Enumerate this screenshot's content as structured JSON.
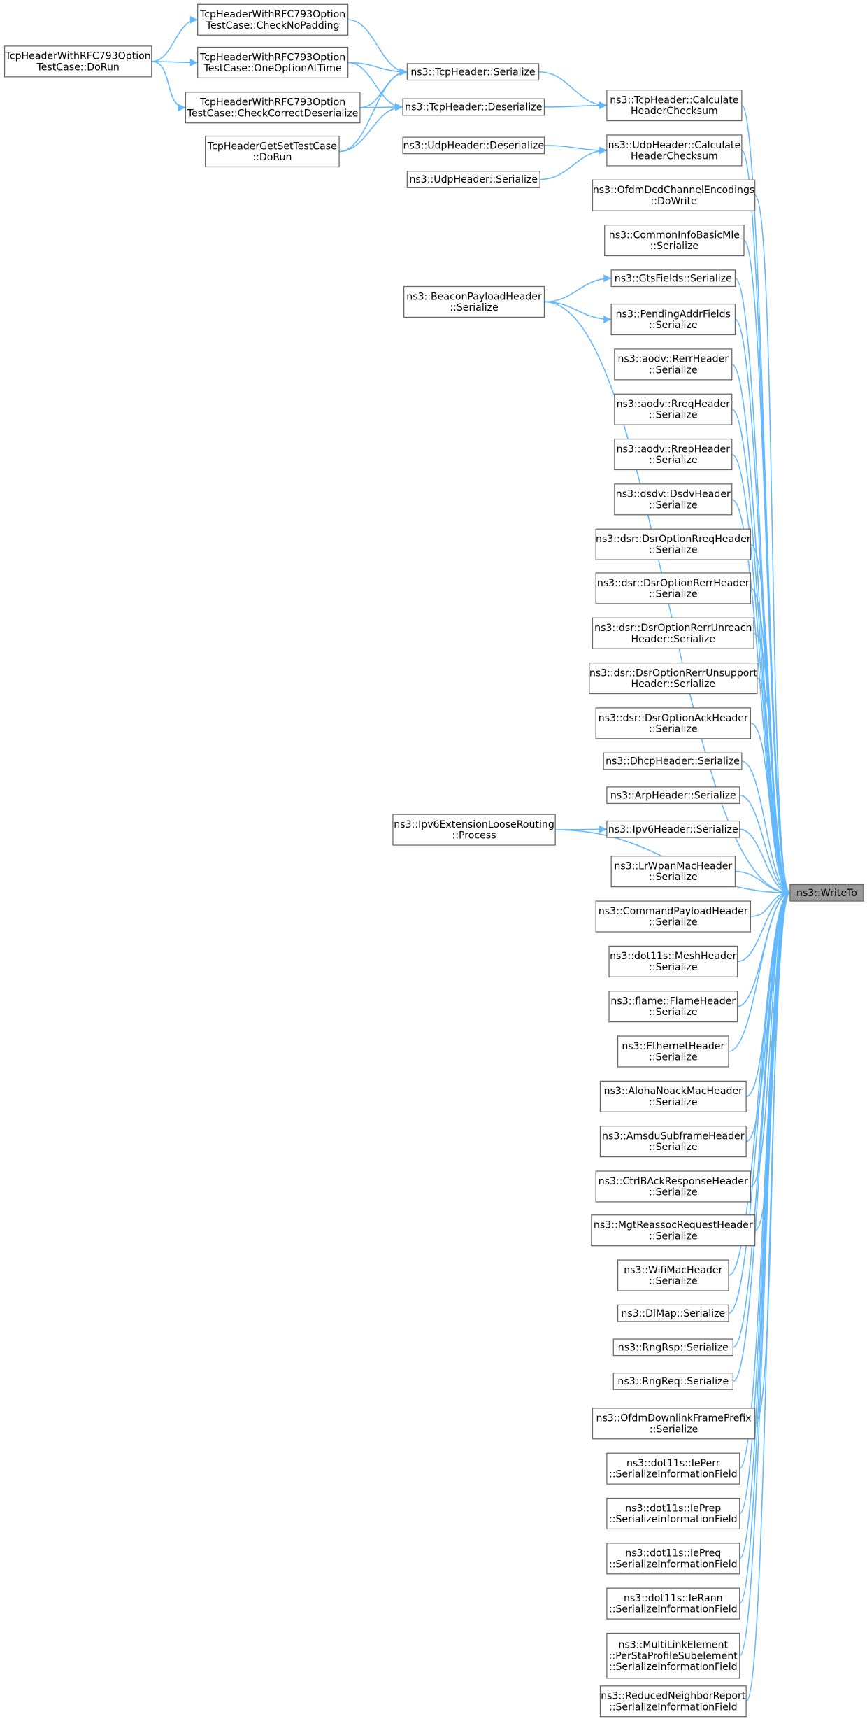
{
  "nodes": [
    {
      "lines": [
        "TcpHeaderWithRFC793Option",
        "TestCase::DoRun"
      ]
    },
    {
      "lines": [
        "TcpHeaderWithRFC793Option",
        "TestCase::CheckNoPadding"
      ]
    },
    {
      "lines": [
        "TcpHeaderWithRFC793Option",
        "TestCase::OneOptionAtTime"
      ]
    },
    {
      "lines": [
        "TcpHeaderWithRFC793Option",
        "TestCase::CheckCorrectDeserialize"
      ]
    },
    {
      "lines": [
        "TcpHeaderGetSetTestCase",
        "::DoRun"
      ]
    },
    {
      "lines": [
        "ns3::TcpHeader::Serialize"
      ]
    },
    {
      "lines": [
        "ns3::TcpHeader::Deserialize"
      ]
    },
    {
      "lines": [
        "ns3::UdpHeader::Deserialize"
      ]
    },
    {
      "lines": [
        "ns3::UdpHeader::Serialize"
      ]
    },
    {
      "lines": [
        "ns3::TcpHeader::Calculate",
        "HeaderChecksum"
      ]
    },
    {
      "lines": [
        "ns3::UdpHeader::Calculate",
        "HeaderChecksum"
      ]
    },
    {
      "lines": [
        "ns3::OfdmDcdChannelEncodings",
        "::DoWrite"
      ]
    },
    {
      "lines": [
        "ns3::CommonInfoBasicMle",
        "::Serialize"
      ]
    },
    {
      "lines": [
        "ns3::GtsFields::Serialize"
      ]
    },
    {
      "lines": [
        "ns3::BeaconPayloadHeader",
        "::Serialize"
      ]
    },
    {
      "lines": [
        "ns3::PendingAddrFields",
        "::Serialize"
      ]
    },
    {
      "lines": [
        "ns3::aodv::RerrHeader",
        "::Serialize"
      ]
    },
    {
      "lines": [
        "ns3::aodv::RreqHeader",
        "::Serialize"
      ]
    },
    {
      "lines": [
        "ns3::aodv::RrepHeader",
        "::Serialize"
      ]
    },
    {
      "lines": [
        "ns3::dsdv::DsdvHeader",
        "::Serialize"
      ]
    },
    {
      "lines": [
        "ns3::dsr::DsrOptionRreqHeader",
        "::Serialize"
      ]
    },
    {
      "lines": [
        "ns3::dsr::DsrOptionRerrHeader",
        "::Serialize"
      ]
    },
    {
      "lines": [
        "ns3::dsr::DsrOptionRerrUnreach",
        "Header::Serialize"
      ]
    },
    {
      "lines": [
        "ns3::dsr::DsrOptionRerrUnsupport",
        "Header::Serialize"
      ]
    },
    {
      "lines": [
        "ns3::dsr::DsrOptionAckHeader",
        "::Serialize"
      ]
    },
    {
      "lines": [
        "ns3::DhcpHeader::Serialize"
      ]
    },
    {
      "lines": [
        "ns3::ArpHeader::Serialize"
      ]
    },
    {
      "lines": [
        "ns3::Ipv6ExtensionLooseRouting",
        "::Process"
      ]
    },
    {
      "lines": [
        "ns3::Ipv6Header::Serialize"
      ]
    },
    {
      "lines": [
        "ns3::LrWpanMacHeader",
        "::Serialize"
      ]
    },
    {
      "lines": [
        "ns3::WriteTo"
      ]
    },
    {
      "lines": [
        "ns3::CommandPayloadHeader",
        "::Serialize"
      ]
    },
    {
      "lines": [
        "ns3::dot11s::MeshHeader",
        "::Serialize"
      ]
    },
    {
      "lines": [
        "ns3::flame::FlameHeader",
        "::Serialize"
      ]
    },
    {
      "lines": [
        "ns3::EthernetHeader",
        "::Serialize"
      ]
    },
    {
      "lines": [
        "ns3::AlohaNoackMacHeader",
        "::Serialize"
      ]
    },
    {
      "lines": [
        "ns3::AmsduSubframeHeader",
        "::Serialize"
      ]
    },
    {
      "lines": [
        "ns3::CtrlBAckResponseHeader",
        "::Serialize"
      ]
    },
    {
      "lines": [
        "ns3::MgtReassocRequestHeader",
        "::Serialize"
      ]
    },
    {
      "lines": [
        "ns3::WifiMacHeader",
        "::Serialize"
      ]
    },
    {
      "lines": [
        "ns3::DlMap::Serialize"
      ]
    },
    {
      "lines": [
        "ns3::RngRsp::Serialize"
      ]
    },
    {
      "lines": [
        "ns3::RngReq::Serialize"
      ]
    },
    {
      "lines": [
        "ns3::OfdmDownlinkFramePrefix",
        "::Serialize"
      ]
    },
    {
      "lines": [
        "ns3::dot11s::IePerr",
        "::SerializeInformationField"
      ]
    },
    {
      "lines": [
        "ns3::dot11s::IePrep",
        "::SerializeInformationField"
      ]
    },
    {
      "lines": [
        "ns3::dot11s::IePreq",
        "::SerializeInformationField"
      ]
    },
    {
      "lines": [
        "ns3::dot11s::IeRann",
        "::SerializeInformationField"
      ]
    },
    {
      "lines": [
        "ns3::MultiLinkElement",
        "::PerStaProfileSubelement",
        "::SerializeInformationField"
      ]
    },
    {
      "lines": [
        "ns3::ReducedNeighborReport",
        "::SerializeInformationField"
      ]
    }
  ]
}
